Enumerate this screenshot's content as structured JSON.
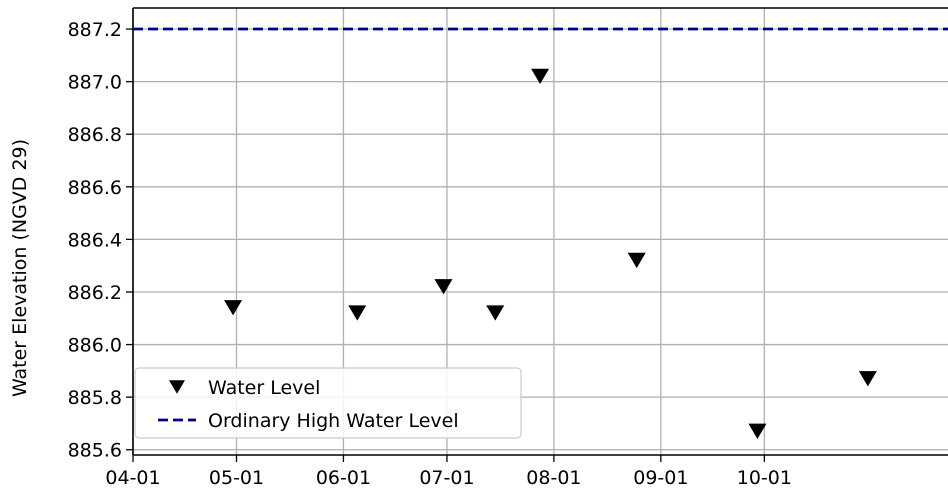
{
  "chart_data": {
    "type": "scatter",
    "title": "",
    "xlabel": "",
    "ylabel": "Water Elevation (NGVD 29)",
    "x_ticks": [
      "04-01",
      "05-01",
      "06-01",
      "07-01",
      "08-01",
      "09-01",
      "10-01"
    ],
    "y_ticks": [
      "885.6",
      "885.8",
      "886.0",
      "886.2",
      "886.4",
      "886.6",
      "886.8",
      "887.0",
      "887.2"
    ],
    "ylim": [
      885.58,
      887.28
    ],
    "xlim": [
      "04-01",
      "10-31"
    ],
    "grid": true,
    "legend": {
      "position": "lower-left"
    },
    "series": [
      {
        "name": "Water Level",
        "kind": "marker",
        "marker": "triangle-down",
        "color": "#000000",
        "x": [
          "04-30",
          "06-05",
          "06-30",
          "07-15",
          "07-28",
          "08-25",
          "09-29",
          "10-31"
        ],
        "y": [
          886.14,
          886.12,
          886.22,
          886.12,
          887.02,
          886.32,
          885.67,
          885.87
        ]
      },
      {
        "name": "Ordinary High Water Level",
        "kind": "hline",
        "style": "dashed",
        "color": "#00008b",
        "y": 887.2
      }
    ]
  }
}
